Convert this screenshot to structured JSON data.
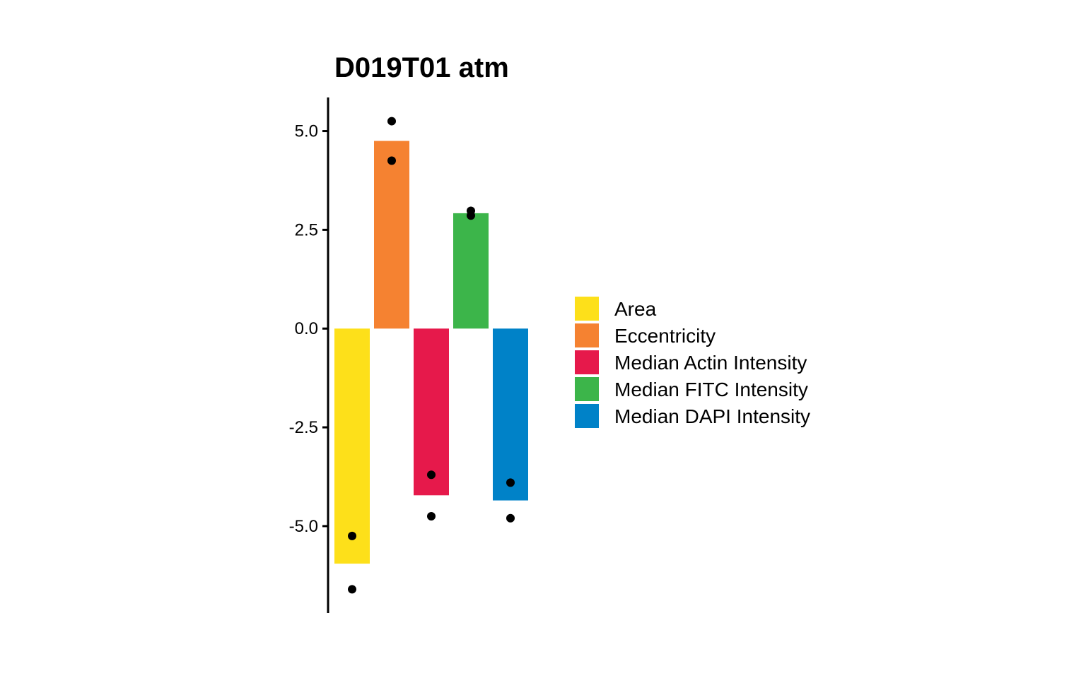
{
  "chart_data": {
    "type": "bar",
    "title": "D019T01 atm",
    "xlabel": "",
    "ylabel": "",
    "ylim": [
      -7.2,
      5.85
    ],
    "yticks": [
      5.0,
      2.5,
      0.0,
      -2.5,
      -5.0
    ],
    "ytick_labels": [
      "5.0",
      "2.5",
      "0.0",
      "-2.5",
      "-5.0"
    ],
    "grid": false,
    "legend_position": "right",
    "categories": [
      "Area",
      "Eccentricity",
      "Median Actin Intensity",
      "Median FITC Intensity",
      "Median DAPI Intensity"
    ],
    "colors": [
      "#FDE01A",
      "#F58231",
      "#E6194B",
      "#3CB54A",
      "#0082C8"
    ],
    "values": [
      -5.95,
      4.75,
      -4.22,
      2.92,
      -4.35
    ],
    "points": [
      [
        -5.25,
        -6.6
      ],
      [
        5.25,
        4.25
      ],
      [
        -3.7,
        -4.75
      ],
      [
        2.98,
        2.86
      ],
      [
        -3.9,
        -4.8
      ]
    ]
  }
}
